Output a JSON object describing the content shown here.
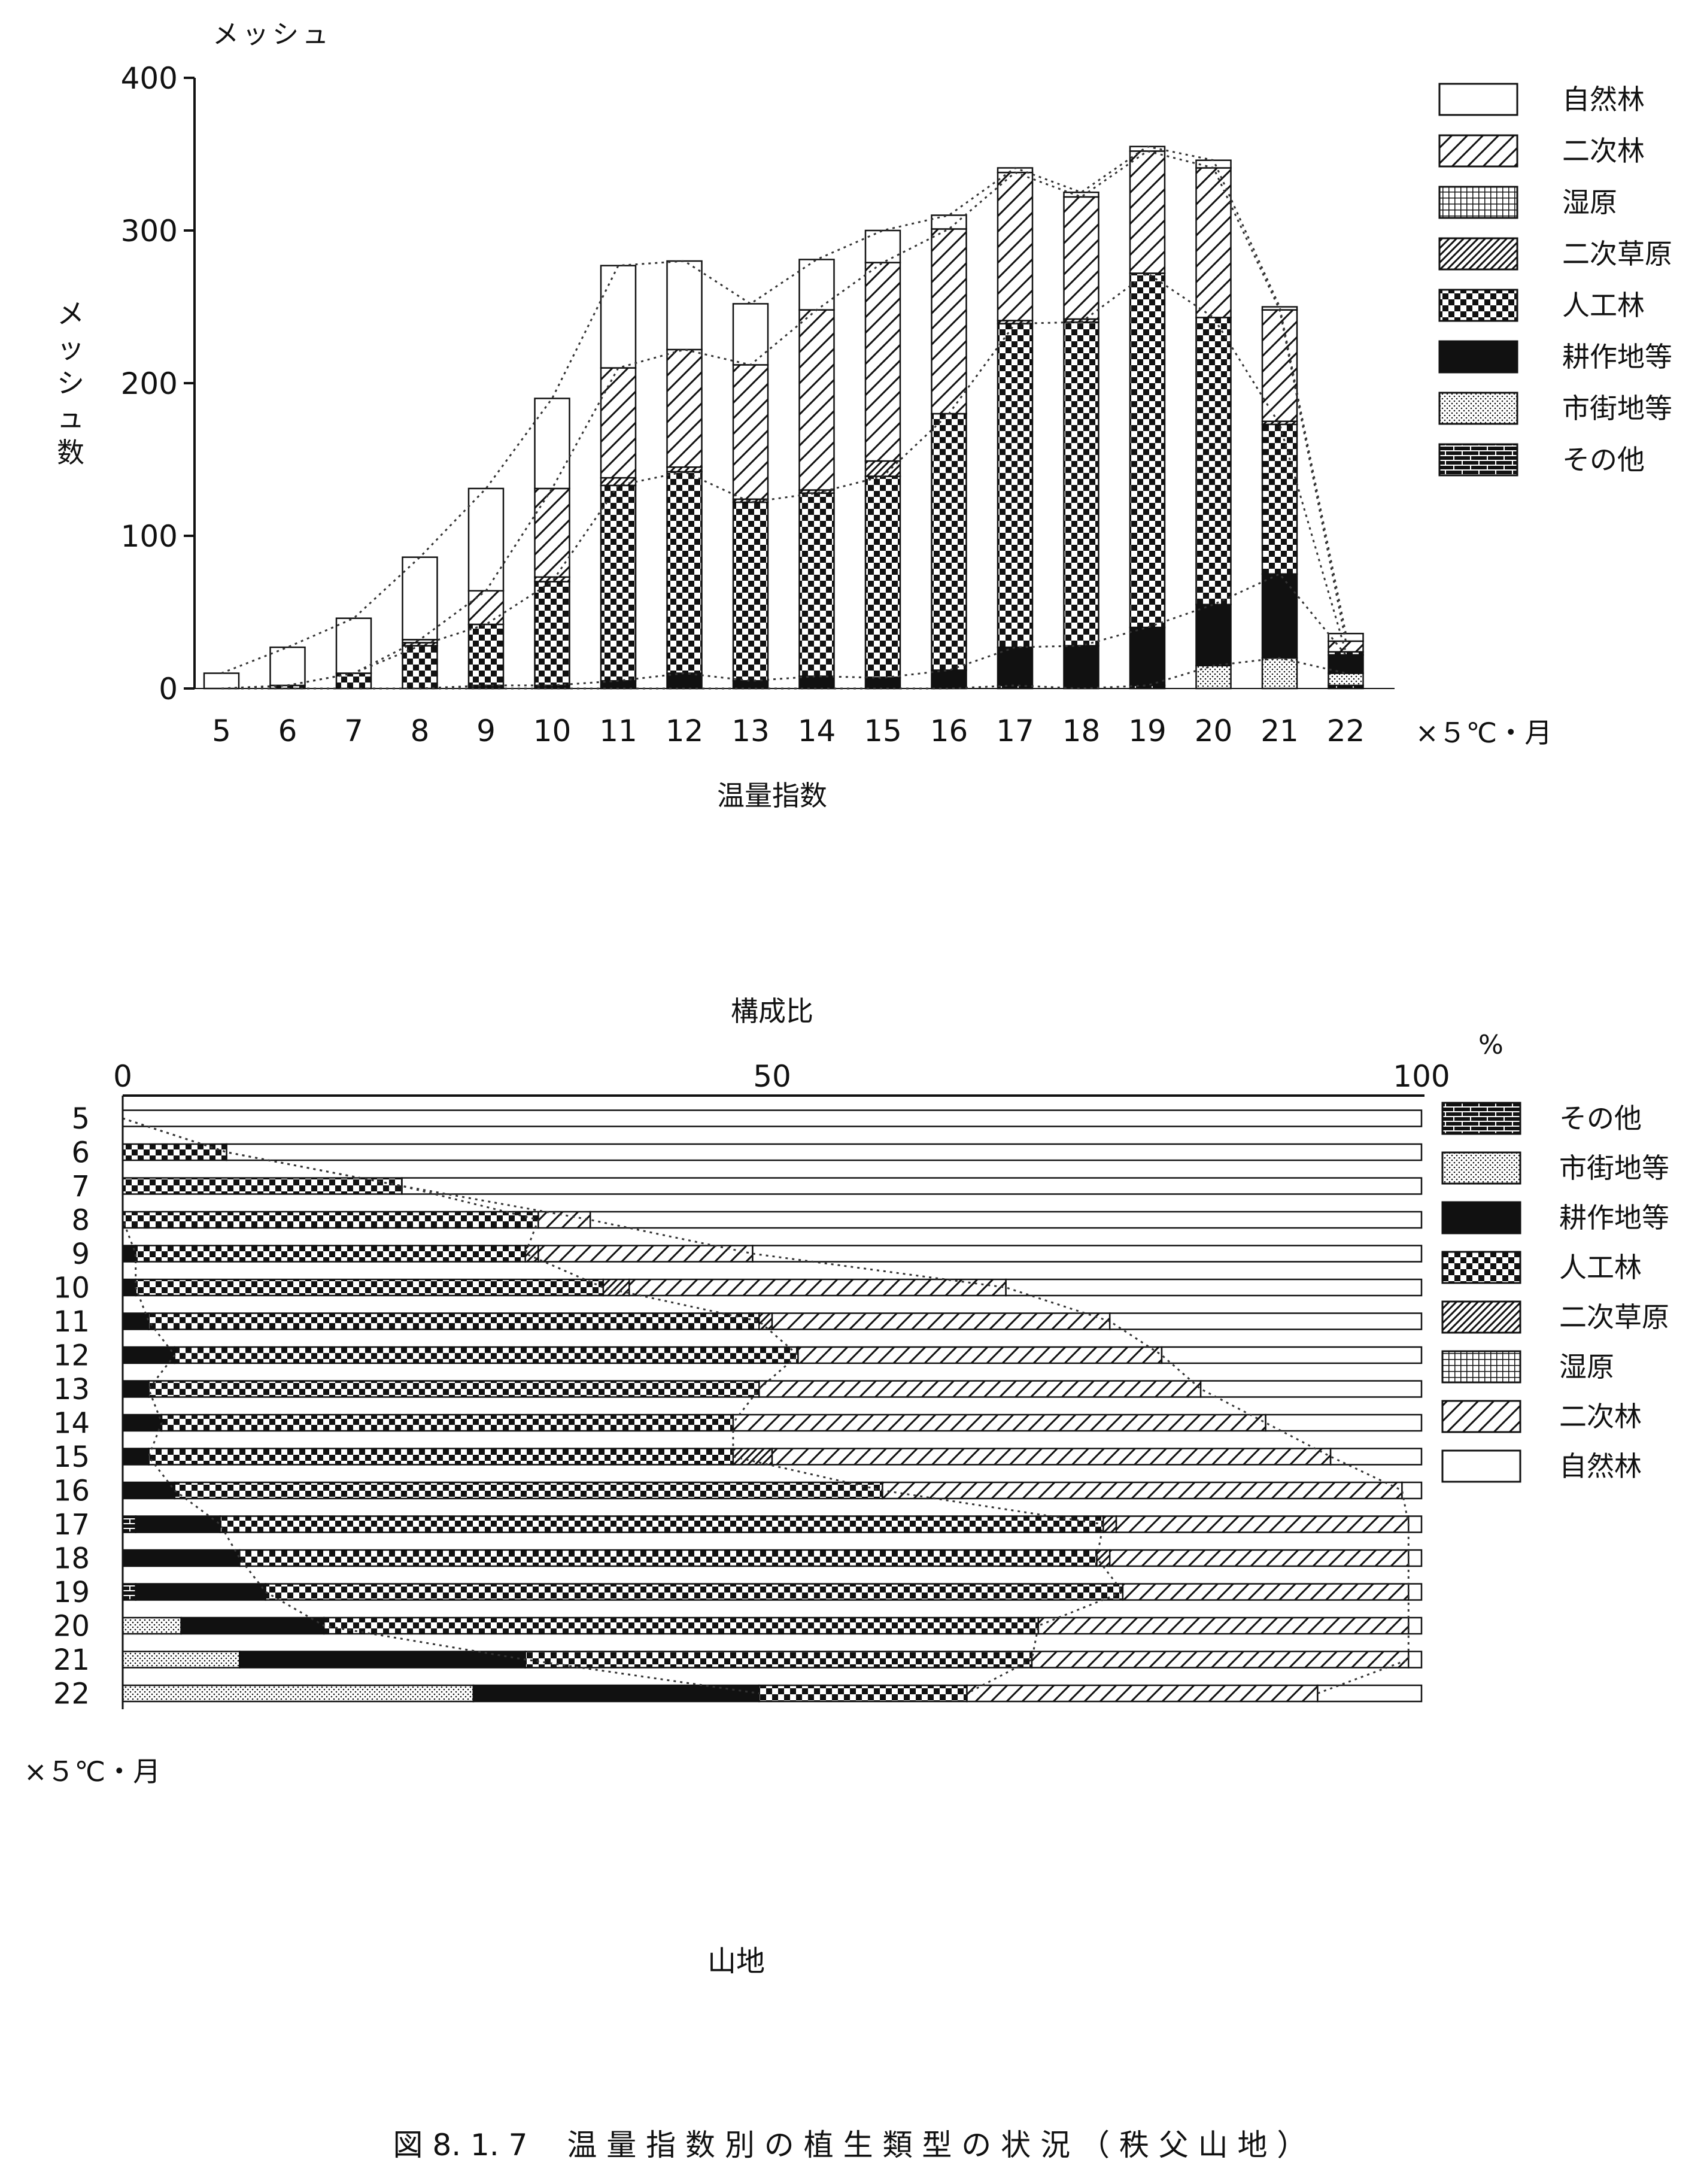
{
  "figure": {
    "caption": "図 8. 1. 7　 温 量 指 数 別 の 植 生 類 型 の 状 況 （ 秩 父 山 地 ）",
    "subtitle": "山地"
  },
  "chart_data": [
    {
      "type": "bar",
      "stacked": true,
      "orientation": "vertical",
      "unit_label": "メッシュ",
      "ylabel": "メッシュ数",
      "xlabel": "温量指数",
      "x_unit": "×５℃・月",
      "ylim": [
        0,
        400
      ],
      "yticks": [
        0,
        100,
        200,
        300,
        400
      ],
      "legend_position": "right",
      "categories": [
        "5",
        "6",
        "7",
        "8",
        "9",
        "10",
        "11",
        "12",
        "13",
        "14",
        "15",
        "16",
        "17",
        "18",
        "19",
        "20",
        "21",
        "22"
      ],
      "series": [
        {
          "name": "その他",
          "pattern": "brick",
          "values": [
            0,
            0,
            0,
            0,
            0,
            0,
            0,
            0,
            0,
            0,
            0,
            0,
            2,
            0,
            2,
            0,
            0,
            2
          ]
        },
        {
          "name": "市街地等",
          "pattern": "stipple",
          "values": [
            0,
            0,
            0,
            0,
            0,
            0,
            0,
            0,
            0,
            0,
            0,
            0,
            0,
            0,
            0,
            15,
            20,
            8
          ]
        },
        {
          "name": "耕作地等",
          "pattern": "solid",
          "values": [
            0,
            0,
            0,
            0,
            2,
            2,
            5,
            10,
            5,
            8,
            7,
            12,
            25,
            28,
            38,
            40,
            55,
            12
          ]
        },
        {
          "name": "人工林",
          "pattern": "checker",
          "values": [
            0,
            2,
            10,
            28,
            40,
            68,
            128,
            132,
            117,
            120,
            132,
            168,
            212,
            212,
            232,
            188,
            98,
            2
          ]
        },
        {
          "name": "二次草原",
          "pattern": "diag-dense",
          "values": [
            0,
            0,
            0,
            2,
            0,
            3,
            5,
            3,
            2,
            2,
            10,
            0,
            2,
            2,
            0,
            0,
            2,
            0
          ]
        },
        {
          "name": "湿原",
          "pattern": "grid",
          "values": [
            0,
            0,
            0,
            0,
            0,
            0,
            0,
            0,
            0,
            0,
            0,
            0,
            0,
            0,
            0,
            0,
            0,
            0
          ]
        },
        {
          "name": "二次林",
          "pattern": "diag-light",
          "values": [
            0,
            0,
            0,
            2,
            22,
            58,
            72,
            77,
            88,
            118,
            130,
            121,
            97,
            80,
            80,
            98,
            73,
            7
          ]
        },
        {
          "name": "自然林",
          "pattern": "white",
          "values": [
            10,
            25,
            36,
            54,
            67,
            59,
            67,
            58,
            40,
            33,
            21,
            9,
            3,
            3,
            3,
            5,
            2,
            5
          ]
        }
      ]
    },
    {
      "type": "bar",
      "stacked": true,
      "orientation": "horizontal",
      "title": "構成比",
      "x_unit_label": "%",
      "xlim": [
        0,
        100
      ],
      "xticks": [
        0,
        50,
        100
      ],
      "y_unit": "×５℃・月",
      "legend_position": "right",
      "categories": [
        "5",
        "6",
        "7",
        "8",
        "9",
        "10",
        "11",
        "12",
        "13",
        "14",
        "15",
        "16",
        "17",
        "18",
        "19",
        "20",
        "21",
        "22"
      ],
      "series": [
        {
          "name": "その他",
          "pattern": "brick",
          "values": [
            0,
            0,
            0,
            0,
            0,
            0,
            0,
            0,
            0,
            0,
            0,
            0,
            1,
            0,
            1,
            0,
            0,
            0
          ]
        },
        {
          "name": "市街地等",
          "pattern": "stipple",
          "values": [
            0,
            0,
            0,
            0,
            0,
            0,
            0,
            0,
            0,
            0,
            0,
            0,
            0,
            0,
            0,
            4.5,
            9,
            27
          ]
        },
        {
          "name": "耕作地等",
          "pattern": "solid",
          "values": [
            0,
            0,
            0,
            0,
            1,
            1,
            2,
            4,
            2,
            3,
            2,
            4,
            6.5,
            9,
            10,
            11,
            22,
            22
          ]
        },
        {
          "name": "人工林",
          "pattern": "checker",
          "values": [
            0,
            8,
            21.5,
            32,
            30,
            36,
            47,
            48,
            47,
            44,
            45,
            54.5,
            68,
            66,
            66,
            55,
            39,
            16
          ]
        },
        {
          "name": "二次草原",
          "pattern": "diag-dense",
          "values": [
            0,
            0,
            0,
            0,
            1,
            2,
            1,
            0,
            0,
            0,
            3,
            0,
            1,
            1,
            0,
            0,
            0,
            0
          ]
        },
        {
          "name": "湿原",
          "pattern": "grid",
          "values": [
            0,
            0,
            0,
            0,
            0,
            0,
            0,
            0,
            0,
            0,
            0,
            0,
            0,
            0,
            0,
            0,
            0,
            0
          ]
        },
        {
          "name": "二次林",
          "pattern": "diag-light",
          "values": [
            0,
            0,
            0,
            4,
            16.5,
            29,
            26,
            28,
            34,
            41,
            43,
            40,
            22.5,
            23,
            22,
            28.5,
            29,
            27
          ]
        },
        {
          "name": "自然林",
          "pattern": "white",
          "values": [
            100,
            92,
            78.5,
            64,
            51.5,
            32,
            24,
            20,
            17,
            12,
            7,
            1.5,
            1,
            1,
            1,
            1,
            1,
            8
          ]
        }
      ]
    }
  ]
}
